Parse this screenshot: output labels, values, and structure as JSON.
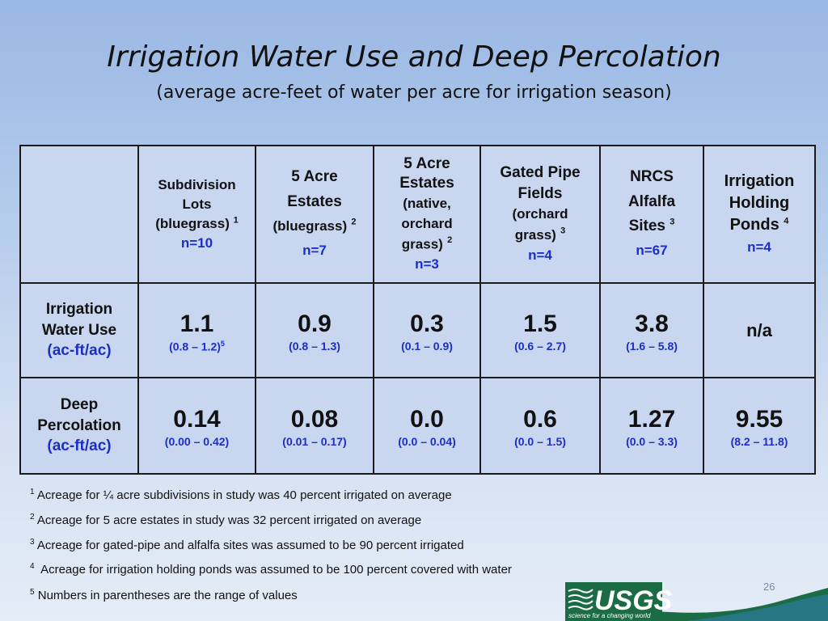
{
  "title": "Irrigation Water Use and Deep Percolation",
  "subtitle": "(average acre-feet of water per acre for irrigation season)",
  "columns": [
    {
      "l1": "Subdivision",
      "l2": "Lots",
      "l3": "(bluegrass)",
      "sup": "1",
      "n": "n=10"
    },
    {
      "l1": "5 Acre",
      "l2": "Estates",
      "l3": "(bluegrass)",
      "sup": "2",
      "n": "n=7"
    },
    {
      "l1": "5 Acre",
      "l2": "Estates",
      "l3a": "(native,",
      "l3b": "orchard",
      "l3c": "grass)",
      "sup": "2",
      "n": "n=3"
    },
    {
      "l1": "Gated Pipe",
      "l2": "Fields",
      "l3a": "(orchard",
      "l3b": "grass)",
      "sup": "3",
      "n": "n=4"
    },
    {
      "l1": "NRCS",
      "l2": "Alfalfa",
      "l3": "Sites",
      "sup": "3",
      "n": "n=67"
    },
    {
      "l1": "Irrigation",
      "l2": "Holding",
      "l3": "Ponds",
      "sup": "4",
      "n": "n=4"
    }
  ],
  "rows": [
    {
      "label1": "Irrigation",
      "label2": "Water Use",
      "unit": "(ac-ft/ac)",
      "cells": [
        {
          "value": "1.1",
          "range": "(0.8 – 1.2)",
          "sup": "5"
        },
        {
          "value": "0.9",
          "range": "(0.8 – 1.3)"
        },
        {
          "value": "0.3",
          "range": "(0.1 – 0.9)"
        },
        {
          "value": "1.5",
          "range": "(0.6 – 2.7)"
        },
        {
          "value": "3.8",
          "range": "(1.6 – 5.8)"
        },
        {
          "value": "n/a"
        }
      ]
    },
    {
      "label1": "Deep",
      "label2": "Percolation",
      "unit": "(ac-ft/ac)",
      "cells": [
        {
          "value": "0.14",
          "range": "(0.00 – 0.42)"
        },
        {
          "value": "0.08",
          "range": "(0.01 – 0.17)"
        },
        {
          "value": "0.0",
          "range": "(0.0 – 0.04)"
        },
        {
          "value": "0.6",
          "range": "(0.0 – 1.5)"
        },
        {
          "value": "1.27",
          "range": "(0.0 – 3.3)"
        },
        {
          "value": "9.55",
          "range": "(8.2 – 11.8)"
        }
      ]
    }
  ],
  "footnotes": [
    {
      "sup": "1",
      "text": " Acreage for ¼ acre subdivisions in study was 40 percent irrigated on average"
    },
    {
      "sup": "2",
      "text": " Acreage for 5 acre estates in study was 32 percent irrigated on average"
    },
    {
      "sup": "3",
      "text": " Acreage for gated-pipe and alfalfa sites was assumed to be 90 percent irrigated"
    },
    {
      "sup": "4",
      "text": "  Acreage for irrigation holding ponds was assumed to be 100 percent covered with water"
    },
    {
      "sup": "5",
      "text": " Numbers in parentheses are the range of values"
    }
  ],
  "slide_number": "26",
  "logo": {
    "name": "USGS",
    "tagline": "science for a changing world"
  },
  "colors": {
    "accent_blue": "#1c2fc4",
    "table_bg": "#c8d6f0",
    "logo_green": "#1b6b45"
  }
}
